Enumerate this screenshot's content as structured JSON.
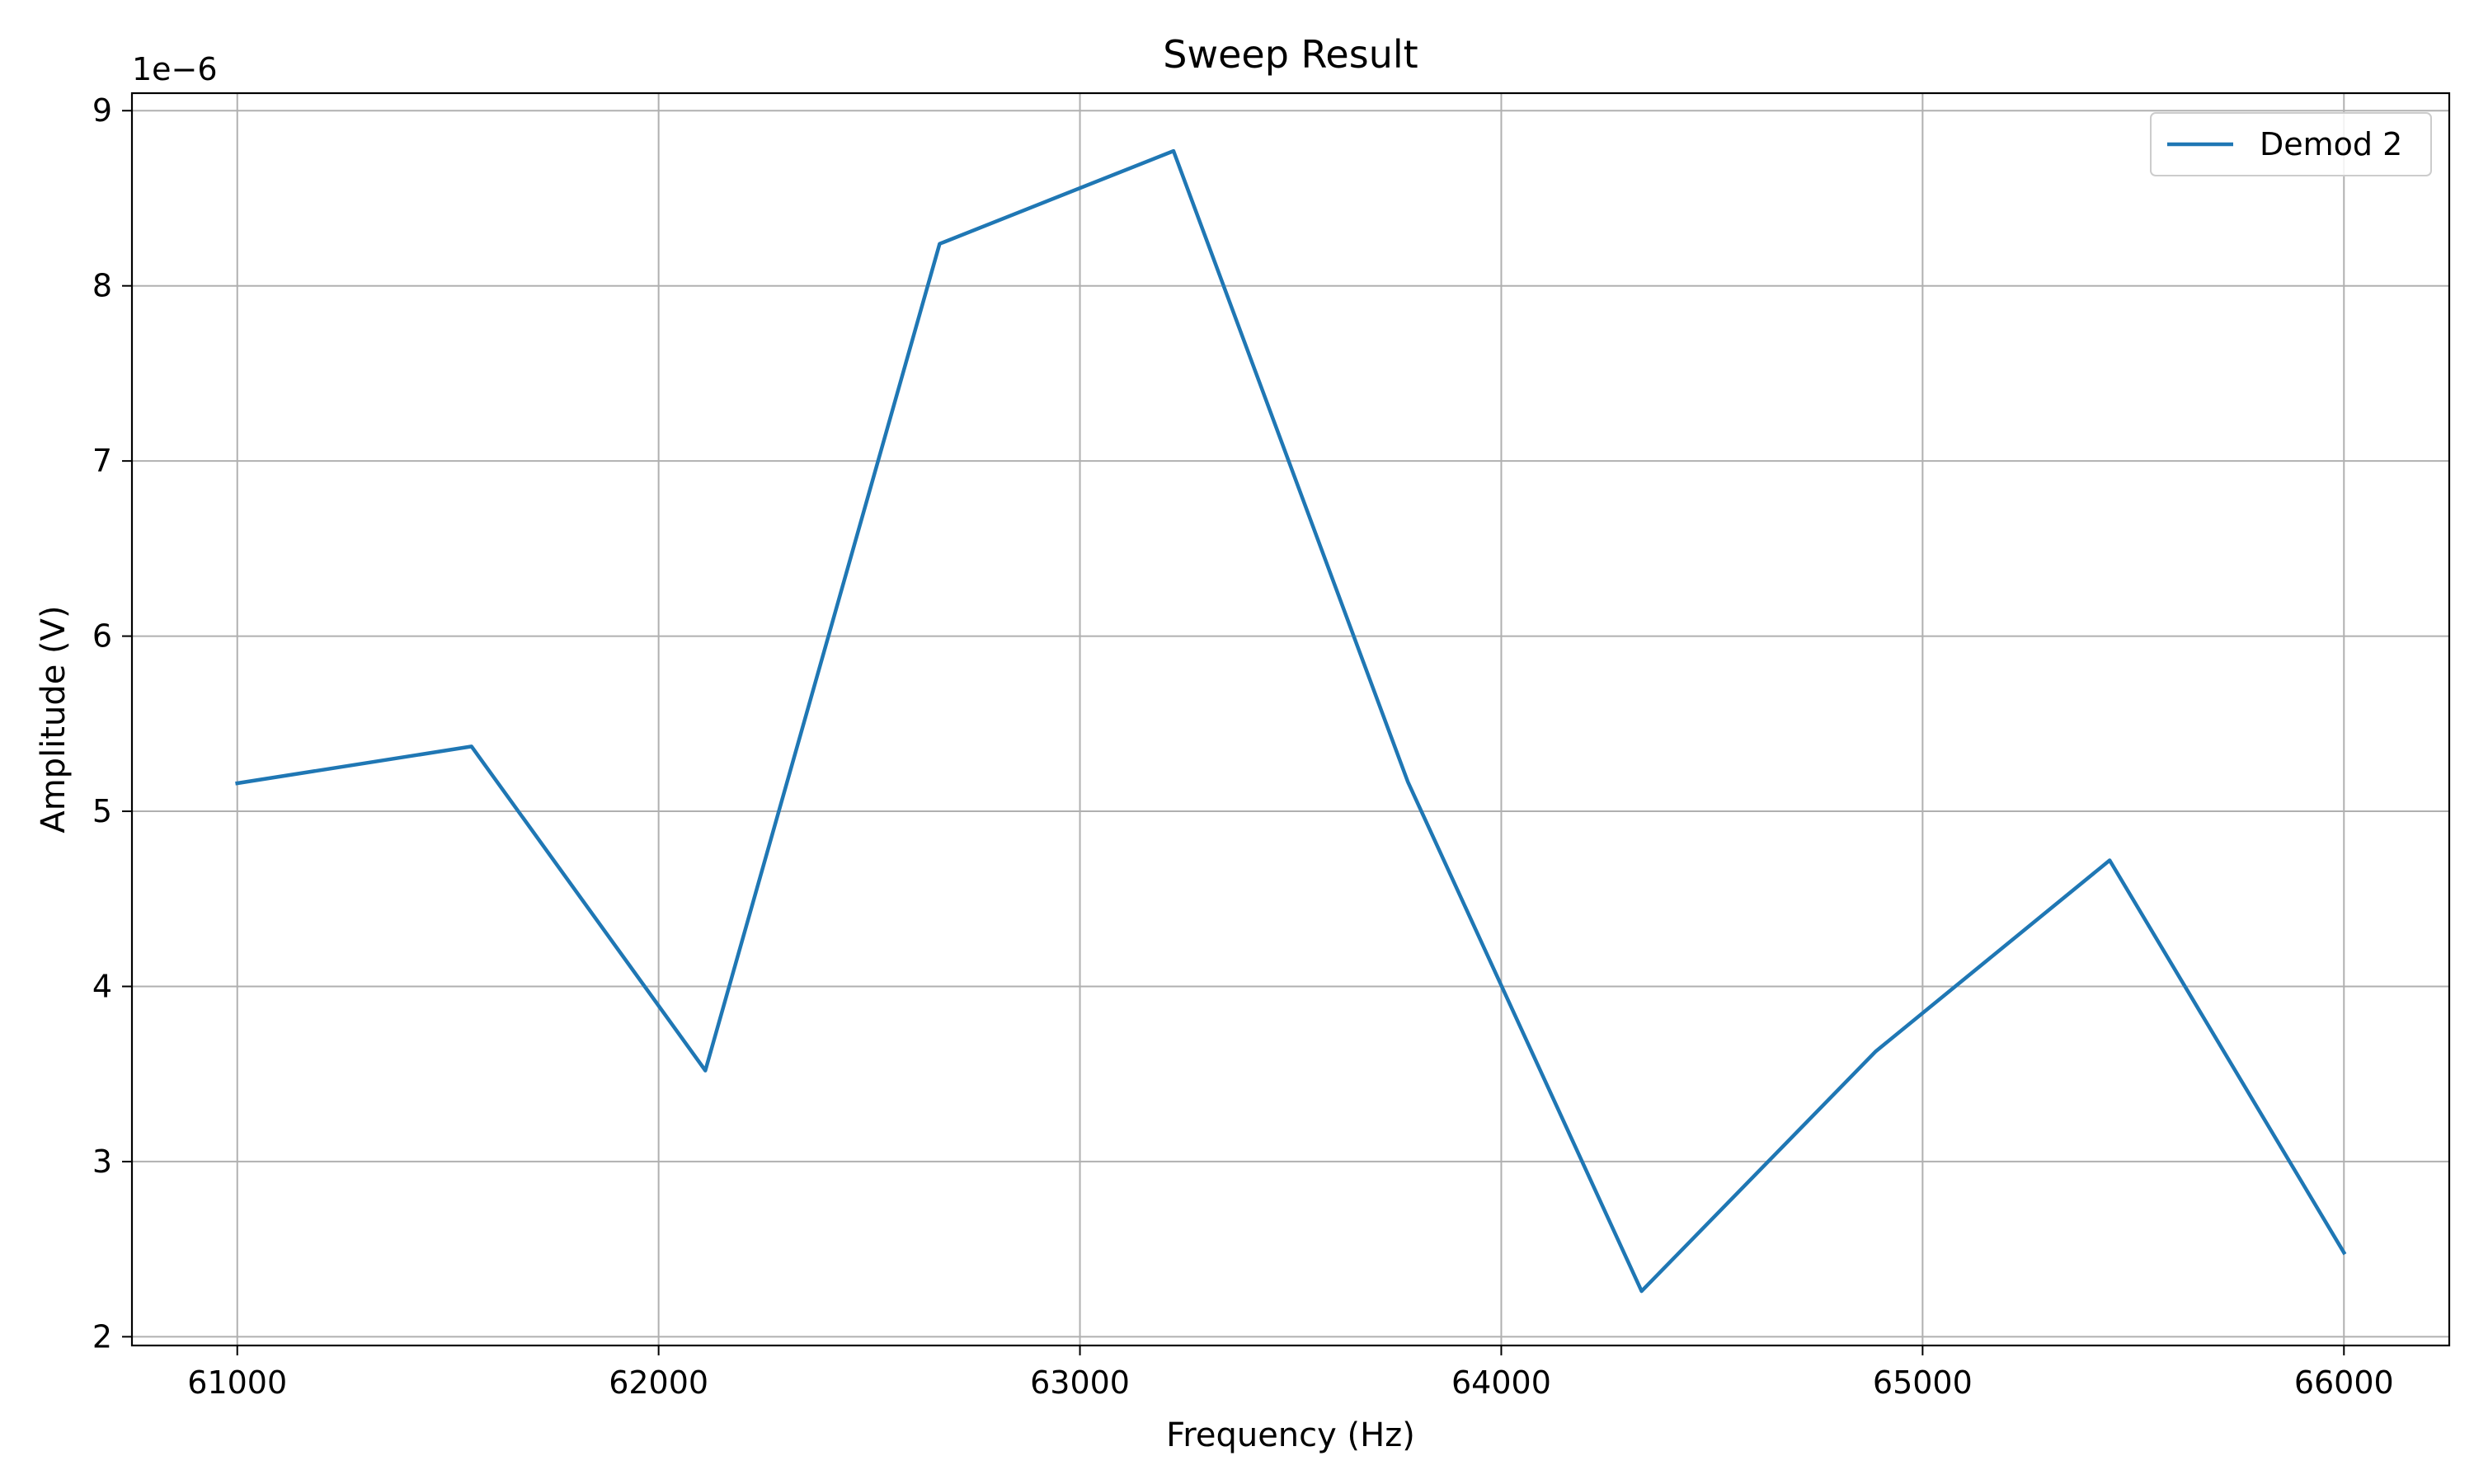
{
  "chart_data": {
    "type": "line",
    "title": "Sweep Result",
    "xlabel": "Frequency (Hz)",
    "ylabel": "Amplitude (V)",
    "y_offset_label": "1e−6",
    "xlim": [
      60750,
      66250
    ],
    "ylim": [
      1.95,
      9.1
    ],
    "x_ticks": [
      61000,
      62000,
      63000,
      64000,
      65000,
      66000
    ],
    "x_tick_labels": [
      "61000",
      "62000",
      "63000",
      "64000",
      "65000",
      "66000"
    ],
    "y_ticks": [
      2,
      3,
      4,
      5,
      6,
      7,
      8,
      9
    ],
    "y_tick_labels": [
      "2",
      "3",
      "4",
      "5",
      "6",
      "7",
      "8",
      "9"
    ],
    "grid": true,
    "legend_position": "top-right",
    "series": [
      {
        "name": "Demod 2",
        "color": "#1f77b4",
        "x": [
          61000,
          61556,
          62111,
          62667,
          63222,
          63778,
          64333,
          64889,
          65444,
          66000
        ],
        "y": [
          5.16,
          5.37,
          3.52,
          8.24,
          8.77,
          5.17,
          2.26,
          3.63,
          4.72,
          2.48
        ]
      }
    ]
  }
}
